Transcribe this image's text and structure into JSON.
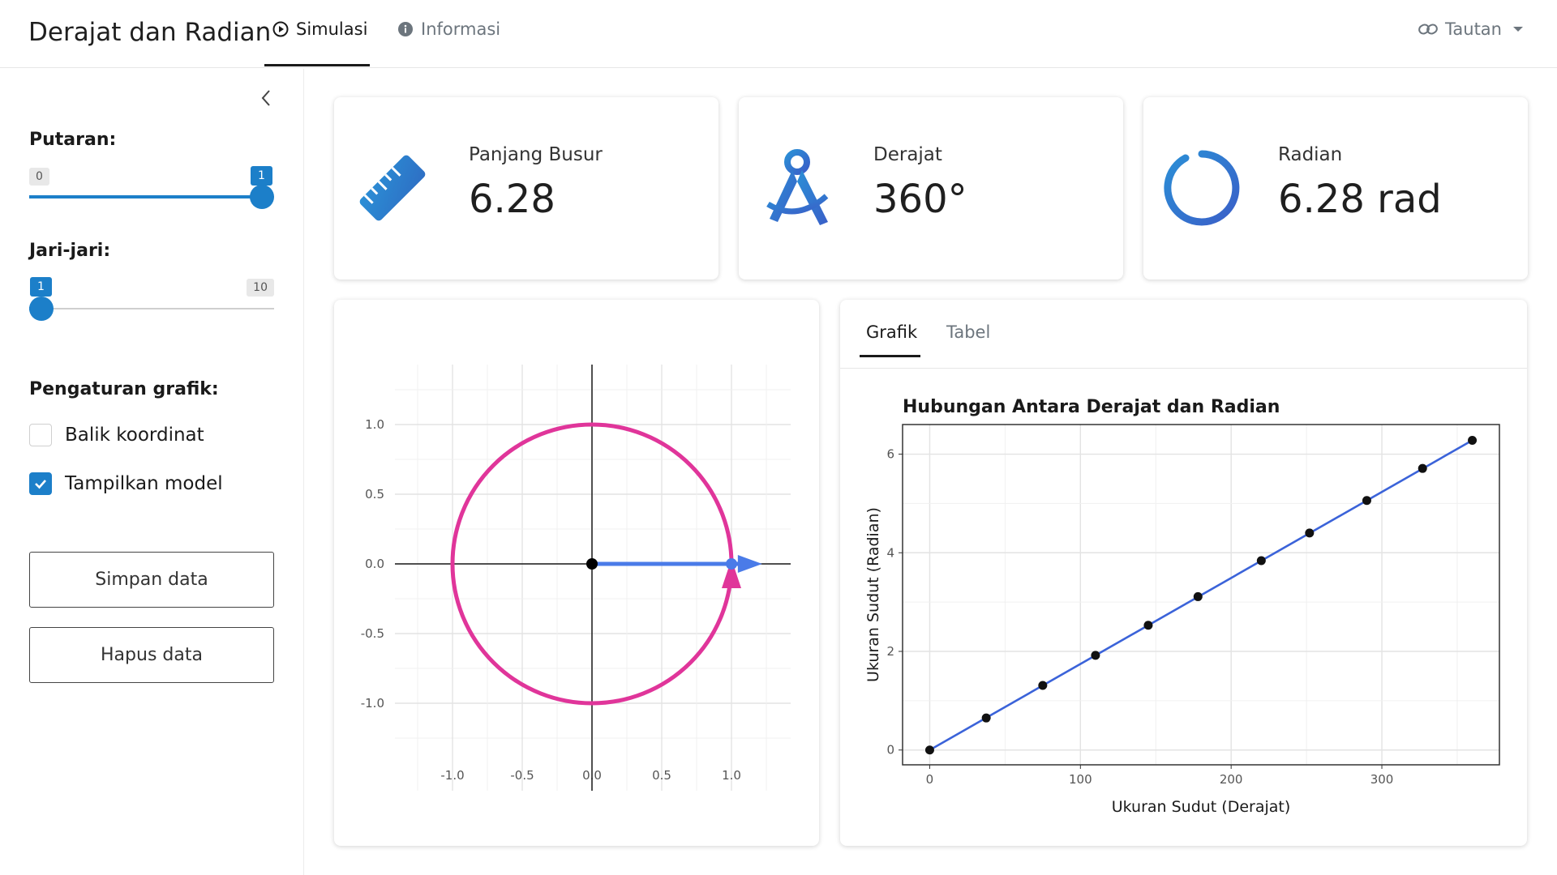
{
  "app": {
    "title": "Derajat dan Radian",
    "tabs": [
      {
        "label": "Simulasi",
        "icon": "play-circle-icon",
        "active": true
      },
      {
        "label": "Informasi",
        "icon": "info-circle-icon",
        "active": false
      }
    ],
    "link_menu": {
      "label": "Tautan",
      "icon": "link-icon"
    }
  },
  "sidebar": {
    "putaran": {
      "label": "Putaran:",
      "min": "0",
      "max": "1",
      "value": "1",
      "fraction": 1.0
    },
    "jari_jari": {
      "label": "Jari-jari:",
      "min": "1",
      "max": "10",
      "value": "1",
      "fraction": 0.0
    },
    "graph_settings_label": "Pengaturan grafik:",
    "options": [
      {
        "label": "Balik koordinat",
        "checked": false
      },
      {
        "label": "Tampilkan model",
        "checked": true
      }
    ],
    "save_button": "Simpan data",
    "clear_button": "Hapus data"
  },
  "cards": [
    {
      "title": "Panjang Busur",
      "value": "6.28",
      "icon": "ruler-icon"
    },
    {
      "title": "Derajat",
      "value": "360°",
      "icon": "compass-drafting-icon"
    },
    {
      "title": "Radian",
      "value": "6.28 rad",
      "icon": "circle-ring-icon"
    }
  ],
  "unit_circle": {
    "ticks": [
      "-1.0",
      "-0.5",
      "0.0",
      "0.5",
      "1.0"
    ],
    "radius": 1,
    "angle_degrees": 360,
    "circle_color": "#e0359a",
    "vector_color": "#4a7be8"
  },
  "chart_tabs": [
    {
      "label": "Grafik",
      "active": true
    },
    {
      "label": "Tabel",
      "active": false
    }
  ],
  "chart_data": {
    "type": "scatter",
    "title": "Hubungan Antara Derajat dan Radian",
    "xlabel": "Ukuran Sudut (Derajat)",
    "ylabel": "Ukuran Sudut (Radian)",
    "xlim": [
      -18,
      378
    ],
    "ylim": [
      -0.3,
      6.6
    ],
    "x_ticks": [
      "0",
      "100",
      "200",
      "300"
    ],
    "y_ticks": [
      "0",
      "2",
      "4",
      "6"
    ],
    "grid": true,
    "points": {
      "x": [
        0,
        37.5,
        75,
        110,
        145,
        178,
        220,
        252,
        290,
        327,
        360
      ],
      "y": [
        0,
        0.65,
        1.31,
        1.92,
        2.53,
        3.11,
        3.84,
        4.4,
        5.06,
        5.71,
        6.28
      ]
    },
    "model_line": {
      "x": [
        0,
        360
      ],
      "y": [
        0,
        6.28
      ],
      "color": "#3b63d9"
    }
  }
}
